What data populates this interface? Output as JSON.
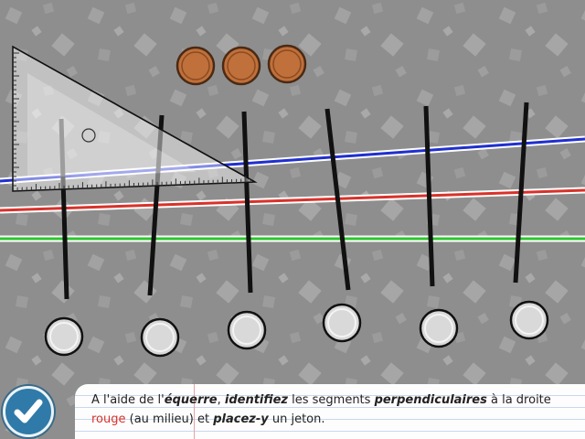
{
  "instruction": {
    "p1": "A l'aide de l'",
    "b1": "équerre",
    "p2": ", ",
    "b2": "identifiez",
    "p3": " les segments ",
    "b3": "perpendiculaires",
    "p4": " à la droite ",
    "red_word": "rouge",
    "p5": " (au milieu) et ",
    "b4": "placez-y",
    "p6": " un jeton."
  },
  "colors": {
    "background": "#8e8e8e",
    "line_blue": "#1f2fd0",
    "line_red": "#d8322a",
    "line_green": "#2cc72c",
    "token": "#c0703a",
    "drop_slot": "#d9d9d9",
    "validate_button": "#2f7aa8"
  },
  "icons": {
    "validate": "checkmark-icon",
    "set_square": "set-square-ruler"
  },
  "tokens_count": 3,
  "segments_count": 6,
  "drop_slots_count": 6
}
